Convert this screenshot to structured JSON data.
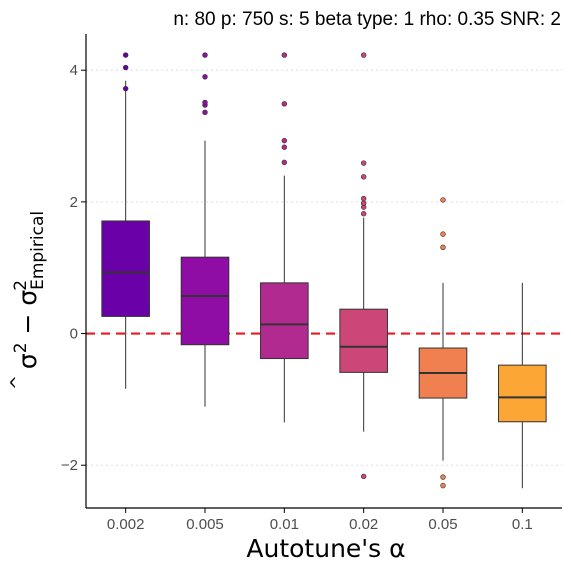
{
  "chart_data": {
    "type": "box",
    "title": "n: 80 p: 750 s: 5 beta type: 1 rho: 0.35 SNR: 2",
    "xlabel_prefix": "Autotune's ",
    "xlabel_symbol": "α",
    "ylabel": {
      "base": "σ",
      "hat": "^",
      "power": "2",
      "minus": " − ",
      "sub": "Empirical"
    },
    "categories": [
      "0.002",
      "0.005",
      "0.01",
      "0.02",
      "0.05",
      "0.1"
    ],
    "ylim": [
      -2.65,
      4.55
    ],
    "yticks": [
      -2,
      0,
      2,
      4
    ],
    "ytick_labels": [
      "−2",
      "0",
      "2",
      "4"
    ],
    "reference_line": {
      "y": 0,
      "color": "#e41a1c",
      "style": "dashed"
    },
    "grid": {
      "horizontal": true,
      "vertical": false
    },
    "colors": [
      "#6a00a8",
      "#8f0da4",
      "#b12a90",
      "#cc4778",
      "#f0804f",
      "#fca636"
    ],
    "boxes": [
      {
        "category": "0.002",
        "whisker_low": -0.84,
        "q1": 0.26,
        "median": 0.93,
        "q3": 1.71,
        "whisker_high": 3.84,
        "outliers": [
          3.72,
          4.04,
          4.23
        ]
      },
      {
        "category": "0.005",
        "whisker_low": -1.11,
        "q1": -0.17,
        "median": 0.57,
        "q3": 1.16,
        "whisker_high": 2.93,
        "outliers": [
          3.36,
          3.47,
          3.51,
          3.9,
          4.23
        ]
      },
      {
        "category": "0.01",
        "whisker_low": -1.35,
        "q1": -0.38,
        "median": 0.14,
        "q3": 0.77,
        "whisker_high": 2.4,
        "outliers": [
          2.6,
          2.83,
          2.93,
          3.49,
          4.23
        ]
      },
      {
        "category": "0.02",
        "whisker_low": -1.49,
        "q1": -0.59,
        "median": -0.2,
        "q3": 0.37,
        "whisker_high": 1.76,
        "outliers": [
          1.82,
          1.92,
          1.98,
          2.05,
          2.38,
          2.59,
          4.23,
          -2.17
        ]
      },
      {
        "category": "0.05",
        "whisker_low": -1.93,
        "q1": -0.98,
        "median": -0.6,
        "q3": -0.22,
        "whisker_high": 0.77,
        "outliers": [
          1.31,
          1.51,
          2.03,
          -2.18,
          -2.31
        ]
      },
      {
        "category": "0.1",
        "whisker_low": -2.35,
        "q1": -1.34,
        "median": -0.97,
        "q3": -0.48,
        "whisker_high": 0.77,
        "outliers": []
      }
    ]
  }
}
